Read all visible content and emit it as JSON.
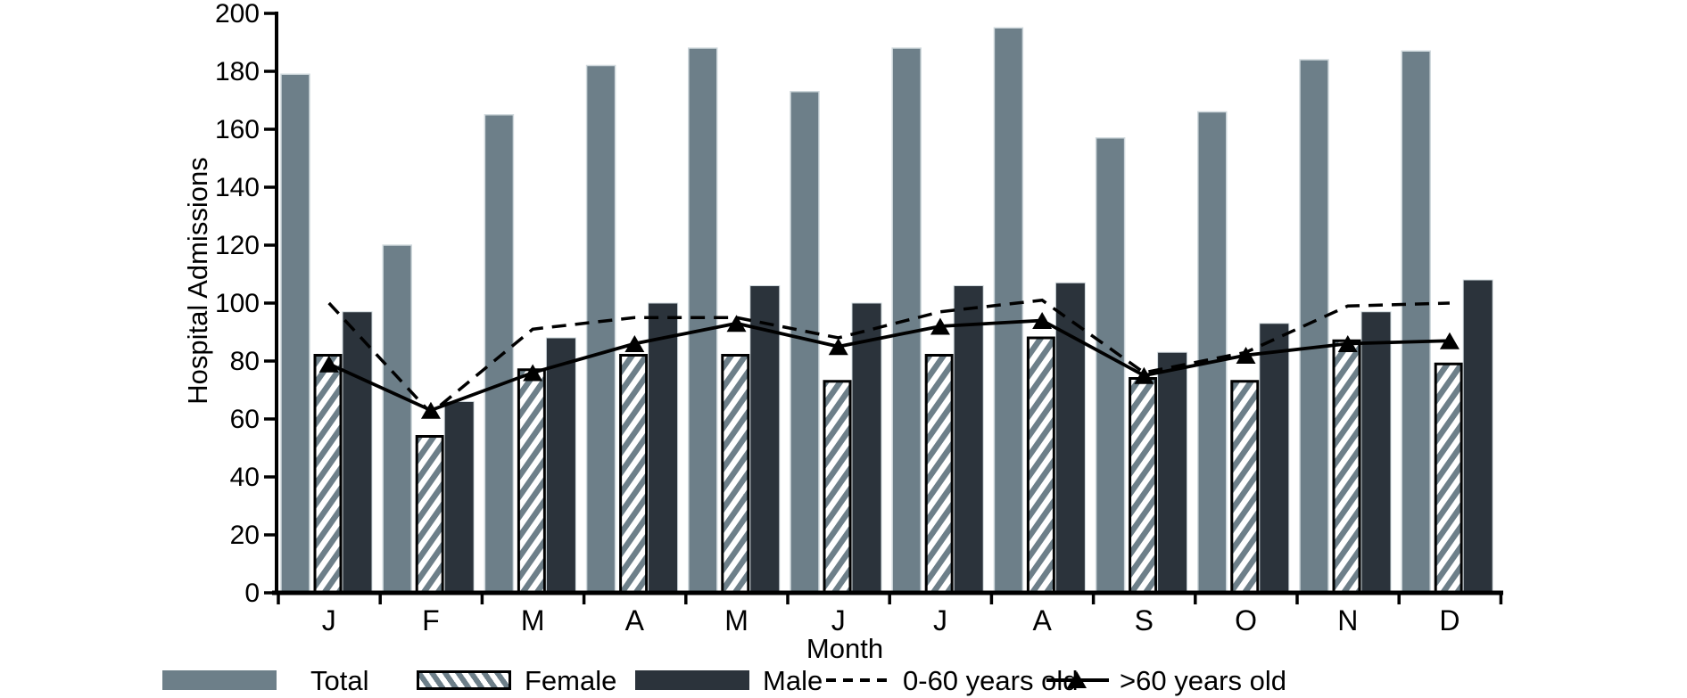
{
  "chart_data": {
    "type": "bar+line",
    "title": "",
    "xlabel": "Month",
    "ylabel": "Hospital Admissions",
    "categories": [
      "J",
      "F",
      "M",
      "A",
      "M",
      "J",
      "J",
      "A",
      "S",
      "O",
      "N",
      "D"
    ],
    "ylim": [
      0,
      200
    ],
    "ytick_step": 20,
    "grid": false,
    "legend_position": "bottom",
    "bar_series": [
      {
        "name": "Total",
        "type": "bar",
        "color": "#6d7f89",
        "values": [
          179,
          120,
          165,
          182,
          188,
          173,
          188,
          195,
          157,
          166,
          184,
          187
        ]
      },
      {
        "name": "Female",
        "type": "bar",
        "style": "hatched",
        "hatch_color": "#6d7f89",
        "outline": "#000000",
        "values": [
          82,
          54,
          77,
          82,
          82,
          73,
          82,
          88,
          74,
          73,
          87,
          79
        ]
      },
      {
        "name": "Male",
        "type": "bar",
        "color": "#2b333b",
        "values": [
          97,
          66,
          88,
          100,
          106,
          100,
          106,
          107,
          83,
          93,
          97,
          108
        ]
      }
    ],
    "line_series": [
      {
        "name": "0-60 years old",
        "type": "line",
        "style": "dashed",
        "color": "#000000",
        "values": [
          100,
          62,
          91,
          95,
          95,
          88,
          97,
          101,
          76,
          83,
          99,
          100
        ]
      },
      {
        "name": ">60 years old",
        "type": "line",
        "style": "solid",
        "marker": "triangle",
        "color": "#000000",
        "values": [
          79,
          63,
          76,
          86,
          93,
          85,
          92,
          94,
          75,
          82,
          86,
          87
        ]
      }
    ]
  },
  "colors": {
    "background": "#ffffff",
    "axis": "#000000",
    "bar_edge": "#cfd8dc",
    "total_bar": "#6d7f89",
    "male_bar": "#2b333b",
    "hatch": "#6d7f89"
  }
}
